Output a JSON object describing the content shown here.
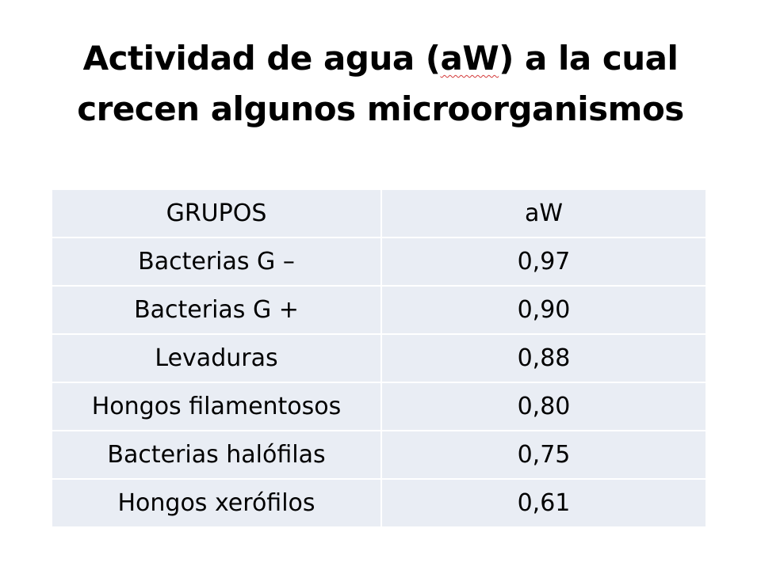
{
  "title": {
    "line1_part1": "Actividad de agua (",
    "line1_underlined": "aW",
    "line1_part2": ") a la cual",
    "line2": "crecen algunos microorganismos"
  },
  "table": {
    "headers": [
      "GRUPOS",
      "aW"
    ],
    "rows": [
      {
        "group": "Bacterias G –",
        "aw": "0,97"
      },
      {
        "group": "Bacterias G +",
        "aw": "0,90"
      },
      {
        "group": "Levaduras",
        "aw": "0,88"
      },
      {
        "group": "Hongos filamentosos",
        "aw": "0,80"
      },
      {
        "group": "Bacterias halófilas",
        "aw": "0,75"
      },
      {
        "group": "Hongos xerófilos",
        "aw": "0,61"
      }
    ]
  },
  "colors": {
    "cell_background": "#e9edf4",
    "cell_border": "#ffffff",
    "spellcheck_underline": "#d33a3a"
  }
}
